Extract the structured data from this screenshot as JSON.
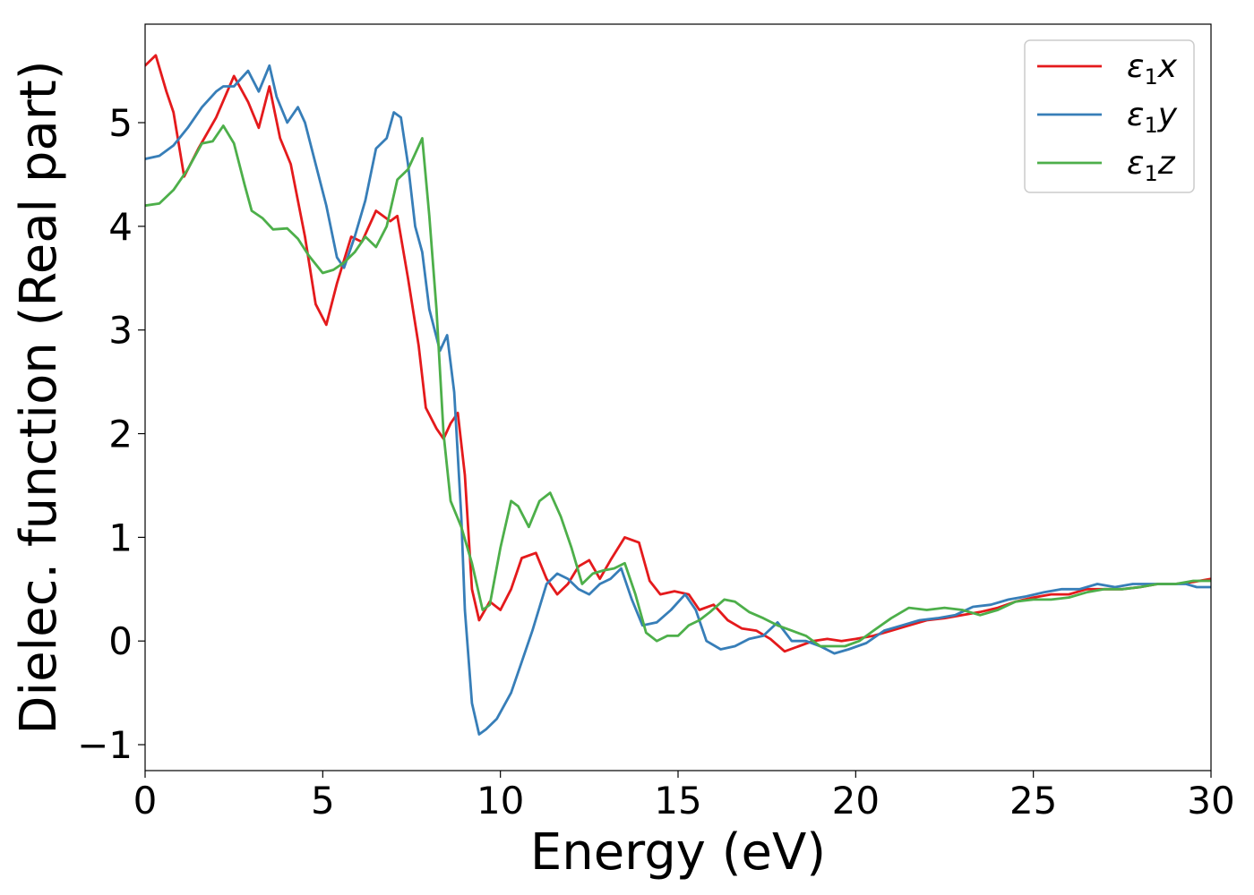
{
  "chart_data": {
    "type": "line",
    "title": "",
    "xlabel": "Energy (eV)",
    "ylabel": "Dielec. function (Real part)",
    "xlim": [
      0,
      30
    ],
    "ylim": [
      -1.25,
      5.95
    ],
    "x_ticks": [
      0,
      5,
      10,
      15,
      20,
      25,
      30
    ],
    "y_ticks": [
      -1,
      0,
      1,
      2,
      3,
      4,
      5
    ],
    "x_tick_labels": [
      "0",
      "5",
      "10",
      "15",
      "20",
      "25",
      "30"
    ],
    "y_tick_labels": [
      "−1",
      "0",
      "1",
      "2",
      "3",
      "4",
      "5"
    ],
    "grid": false,
    "legend_position": "top-right",
    "series": [
      {
        "name": "ε",
        "subscript": "1",
        "suffix": "x",
        "color": "#e41a1c",
        "x": [
          0.0,
          0.3,
          0.6,
          0.8,
          1.1,
          1.5,
          2.0,
          2.5,
          2.9,
          3.2,
          3.5,
          3.8,
          4.1,
          4.5,
          4.8,
          5.1,
          5.4,
          5.8,
          6.1,
          6.5,
          6.9,
          7.1,
          7.4,
          7.7,
          7.9,
          8.2,
          8.4,
          8.6,
          8.8,
          9.0,
          9.2,
          9.4,
          9.7,
          10.0,
          10.3,
          10.6,
          11.0,
          11.3,
          11.6,
          11.9,
          12.2,
          12.5,
          12.8,
          13.1,
          13.5,
          13.9,
          14.2,
          14.5,
          14.9,
          15.3,
          15.6,
          16.0,
          16.4,
          16.8,
          17.2,
          17.6,
          18.0,
          18.4,
          18.8,
          19.2,
          19.6,
          20.0,
          20.5,
          21.0,
          21.5,
          22.0,
          22.5,
          23.0,
          23.5,
          24.0,
          24.5,
          25.0,
          25.5,
          26.0,
          26.5,
          27.0,
          27.5,
          28.0,
          28.5,
          29.0,
          29.5,
          30.0
        ],
        "values": [
          5.55,
          5.65,
          5.3,
          5.1,
          4.48,
          4.75,
          5.05,
          5.45,
          5.2,
          4.95,
          5.35,
          4.85,
          4.6,
          3.9,
          3.25,
          3.05,
          3.45,
          3.9,
          3.85,
          4.15,
          4.05,
          4.1,
          3.5,
          2.85,
          2.25,
          2.05,
          1.95,
          2.1,
          2.2,
          1.6,
          0.5,
          0.2,
          0.38,
          0.3,
          0.5,
          0.8,
          0.85,
          0.6,
          0.45,
          0.55,
          0.72,
          0.78,
          0.6,
          0.78,
          1.0,
          0.95,
          0.58,
          0.45,
          0.48,
          0.45,
          0.3,
          0.35,
          0.2,
          0.12,
          0.1,
          0.02,
          -0.1,
          -0.05,
          0.0,
          0.02,
          0.0,
          0.02,
          0.05,
          0.1,
          0.15,
          0.2,
          0.22,
          0.25,
          0.28,
          0.32,
          0.38,
          0.42,
          0.45,
          0.45,
          0.5,
          0.5,
          0.5,
          0.52,
          0.55,
          0.55,
          0.57,
          0.6
        ]
      },
      {
        "name": "ε",
        "subscript": "1",
        "suffix": "y",
        "color": "#377eb8",
        "x": [
          0.0,
          0.4,
          0.8,
          1.2,
          1.6,
          2.0,
          2.2,
          2.5,
          2.9,
          3.2,
          3.5,
          3.7,
          4.0,
          4.3,
          4.5,
          4.8,
          5.1,
          5.4,
          5.6,
          5.9,
          6.2,
          6.5,
          6.8,
          7.0,
          7.2,
          7.4,
          7.6,
          7.8,
          8.0,
          8.3,
          8.5,
          8.7,
          8.9,
          9.0,
          9.2,
          9.4,
          9.6,
          9.9,
          10.3,
          10.6,
          10.9,
          11.3,
          11.6,
          11.9,
          12.2,
          12.5,
          12.8,
          13.1,
          13.4,
          13.7,
          14.0,
          14.4,
          14.8,
          15.2,
          15.5,
          15.8,
          16.2,
          16.6,
          17.0,
          17.4,
          17.8,
          18.2,
          18.6,
          19.0,
          19.4,
          19.8,
          20.3,
          20.8,
          21.3,
          21.8,
          22.3,
          22.8,
          23.3,
          23.8,
          24.3,
          24.8,
          25.3,
          25.8,
          26.3,
          26.8,
          27.3,
          27.8,
          28.3,
          28.8,
          29.3,
          29.6,
          30.0
        ],
        "values": [
          4.65,
          4.68,
          4.78,
          4.95,
          5.15,
          5.3,
          5.35,
          5.35,
          5.5,
          5.3,
          5.55,
          5.25,
          5.0,
          5.15,
          5.0,
          4.6,
          4.2,
          3.7,
          3.6,
          3.9,
          4.25,
          4.75,
          4.85,
          5.1,
          5.05,
          4.6,
          4.0,
          3.75,
          3.2,
          2.8,
          2.95,
          2.4,
          1.2,
          0.3,
          -0.6,
          -0.9,
          -0.85,
          -0.75,
          -0.5,
          -0.2,
          0.1,
          0.55,
          0.65,
          0.6,
          0.5,
          0.45,
          0.55,
          0.6,
          0.7,
          0.4,
          0.15,
          0.18,
          0.3,
          0.45,
          0.3,
          0.0,
          -0.08,
          -0.05,
          0.02,
          0.05,
          0.18,
          0.0,
          0.0,
          -0.05,
          -0.12,
          -0.08,
          -0.02,
          0.1,
          0.15,
          0.2,
          0.22,
          0.25,
          0.33,
          0.35,
          0.4,
          0.43,
          0.47,
          0.5,
          0.5,
          0.55,
          0.52,
          0.55,
          0.55,
          0.55,
          0.55,
          0.52,
          0.52
        ]
      },
      {
        "name": "ε",
        "subscript": "1",
        "suffix": "z",
        "color": "#4daf4a",
        "x": [
          0.0,
          0.4,
          0.8,
          1.2,
          1.6,
          1.9,
          2.2,
          2.5,
          2.8,
          3.0,
          3.3,
          3.6,
          4.0,
          4.3,
          4.6,
          5.0,
          5.3,
          5.6,
          5.9,
          6.2,
          6.5,
          6.8,
          7.1,
          7.4,
          7.6,
          7.8,
          8.0,
          8.2,
          8.4,
          8.6,
          8.9,
          9.2,
          9.5,
          9.7,
          10.0,
          10.3,
          10.5,
          10.8,
          11.1,
          11.4,
          11.7,
          12.0,
          12.3,
          12.6,
          12.9,
          13.2,
          13.5,
          13.8,
          14.1,
          14.4,
          14.7,
          15.0,
          15.3,
          15.6,
          15.9,
          16.3,
          16.6,
          17.0,
          17.4,
          17.8,
          18.2,
          18.6,
          19.0,
          19.3,
          19.7,
          20.1,
          20.5,
          21.0,
          21.5,
          22.0,
          22.5,
          23.0,
          23.5,
          24.0,
          24.5,
          25.0,
          25.5,
          26.0,
          26.5,
          27.0,
          27.5,
          28.0,
          28.5,
          29.0,
          29.5,
          30.0
        ],
        "values": [
          4.2,
          4.22,
          4.35,
          4.55,
          4.8,
          4.82,
          4.97,
          4.8,
          4.4,
          4.15,
          4.08,
          3.97,
          3.98,
          3.88,
          3.72,
          3.55,
          3.58,
          3.65,
          3.75,
          3.9,
          3.8,
          4.0,
          4.45,
          4.55,
          4.7,
          4.85,
          4.1,
          3.2,
          2.0,
          1.35,
          1.1,
          0.75,
          0.3,
          0.35,
          0.9,
          1.35,
          1.3,
          1.1,
          1.35,
          1.43,
          1.2,
          0.9,
          0.55,
          0.65,
          0.68,
          0.7,
          0.75,
          0.45,
          0.08,
          0.0,
          0.05,
          0.05,
          0.15,
          0.2,
          0.28,
          0.4,
          0.38,
          0.28,
          0.22,
          0.15,
          0.1,
          0.05,
          -0.05,
          -0.05,
          -0.05,
          0.0,
          0.1,
          0.22,
          0.32,
          0.3,
          0.32,
          0.3,
          0.25,
          0.3,
          0.38,
          0.4,
          0.4,
          0.42,
          0.47,
          0.5,
          0.5,
          0.52,
          0.55,
          0.55,
          0.58,
          0.58
        ]
      }
    ]
  }
}
